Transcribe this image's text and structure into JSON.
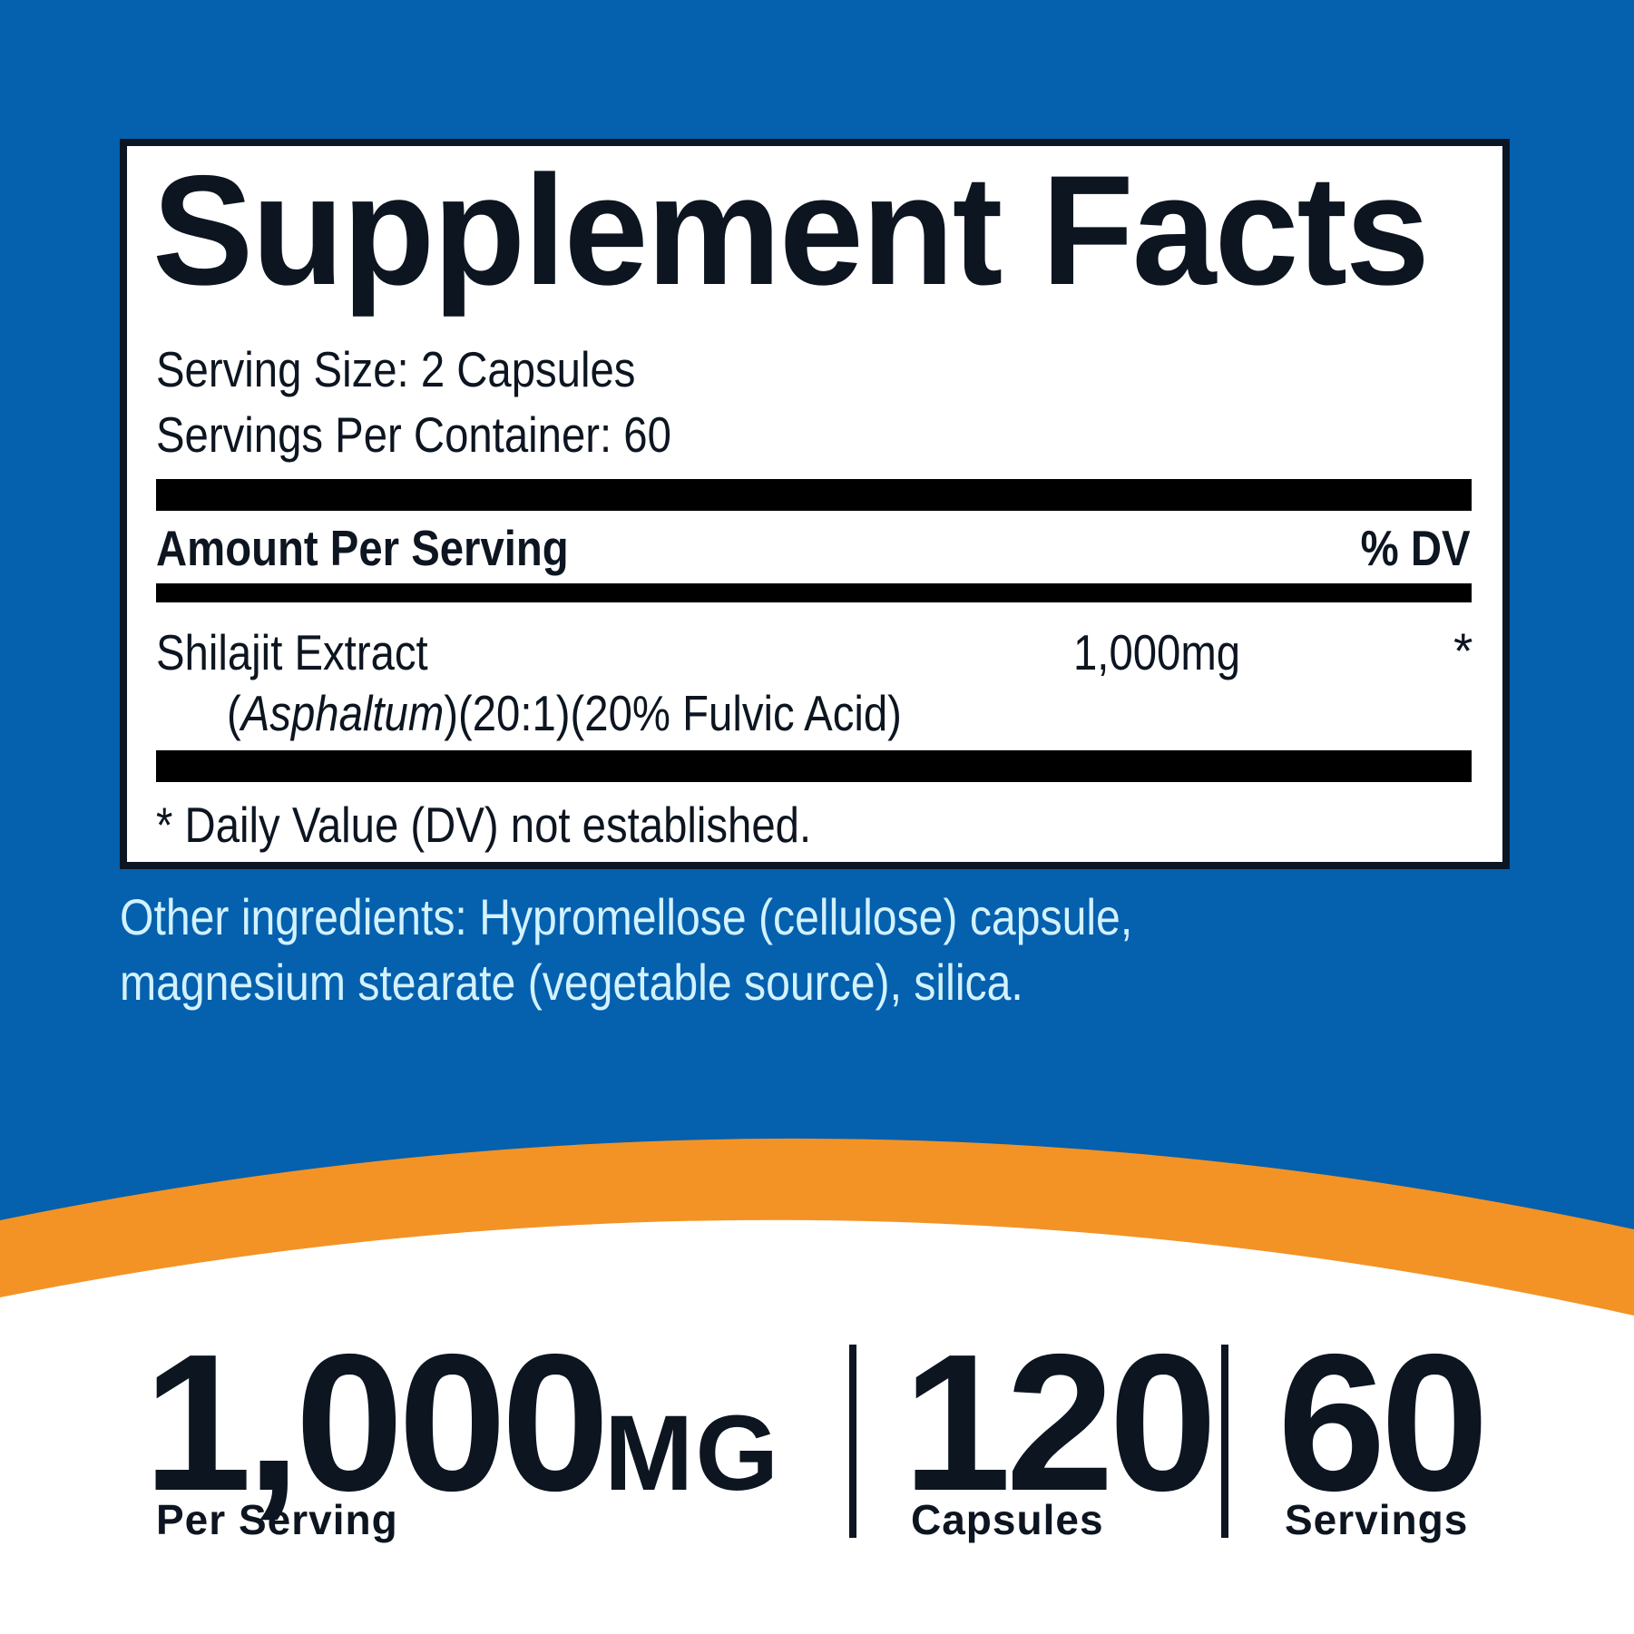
{
  "colors": {
    "background": "#0560ae",
    "accent_orange": "#f39325",
    "text_dark": "#0c1520",
    "other_ingredients_text": "#d2f2ff"
  },
  "facts": {
    "title": "Supplement Facts",
    "serving_size": "Serving Size: 2 Capsules",
    "servings_per_container": "Servings Per Container: 60",
    "amount_header": "Amount Per Serving",
    "dv_header": "% DV",
    "ingredient": {
      "name": "Shilajit Extract",
      "detail_open": "(",
      "detail_italic": "Asphaltum",
      "detail_rest": ")(20:1)(20% Fulvic Acid)",
      "amount": "1,000mg",
      "dv": "*"
    },
    "footnote": "* Daily Value (DV) not established."
  },
  "other_ingredients": {
    "line1": "Other ingredients: Hypromellose (cellulose) capsule,",
    "line2": "magnesium stearate (vegetable source), silica."
  },
  "stats": [
    {
      "value": "1,000",
      "unit": "MG",
      "label": "Per Serving"
    },
    {
      "value": "120",
      "label": "Capsules"
    },
    {
      "value": "60",
      "label": "Servings"
    }
  ]
}
